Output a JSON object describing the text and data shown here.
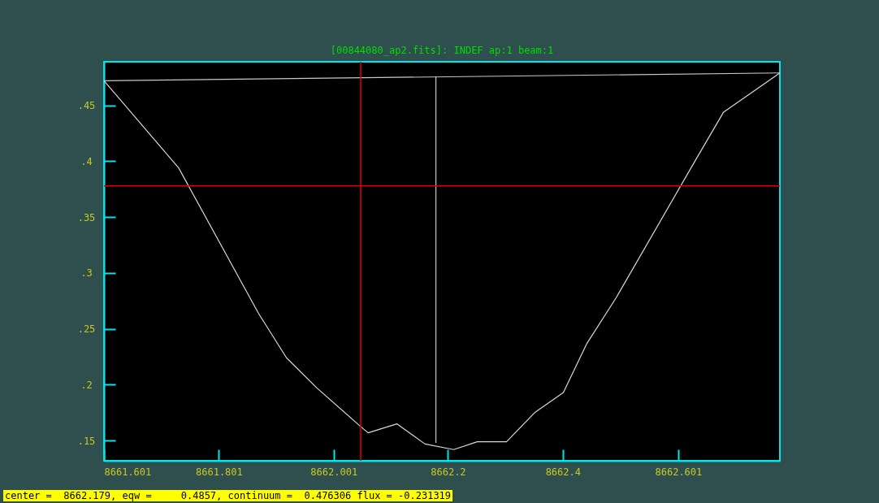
{
  "chart_data": {
    "type": "line",
    "title": "[00844080_ap2.fits]:  INDEF ap:1 beam:1",
    "series": [
      {
        "color": "#d8d8d8",
        "x": [
          8661.601,
          8661.731,
          8661.87,
          8661.919,
          8661.972,
          8662.047,
          8662.061,
          8662.111,
          8662.16,
          8662.21,
          8662.251,
          8662.276,
          8662.302,
          8662.351,
          8662.401,
          8662.442,
          8662.493,
          8662.63,
          8662.68,
          8662.778
        ],
        "values": [
          0.472,
          0.394,
          0.264,
          0.224,
          0.197,
          0.163,
          0.157,
          0.165,
          0.147,
          0.142,
          0.149,
          0.149,
          0.149,
          0.175,
          0.193,
          0.237,
          0.278,
          0.4,
          0.444,
          0.479
        ]
      },
      {
        "color": "#c8c8c8",
        "x": [
          8661.601,
          8662.778
        ],
        "values": [
          0.472,
          0.479
        ]
      },
      {
        "color": "#c8c8c8",
        "x": [
          8662.179,
          8662.179
        ],
        "values": [
          0.476,
          0.148
        ]
      }
    ],
    "xlim": [
      8661.601,
      8662.778
    ],
    "ylim": [
      0.132,
      0.489
    ],
    "xticks": [
      8661.601,
      8661.801,
      8662.001,
      8662.2,
      8662.4,
      8662.601
    ],
    "yticks": [
      {
        "value": 0.15,
        "label": ".15"
      },
      {
        "value": 0.2,
        "label": ".2"
      },
      {
        "value": 0.25,
        "label": ".25"
      },
      {
        "value": 0.3,
        "label": ".3"
      },
      {
        "value": 0.35,
        "label": ".35"
      },
      {
        "value": 0.4,
        "label": ".4"
      },
      {
        "value": 0.45,
        "label": ".45"
      }
    ],
    "ref_lines": [
      {
        "axis": "x",
        "value": 8662.048,
        "color": "#dd0000"
      },
      {
        "axis": "y",
        "value": 0.378,
        "color": "#dd0000"
      }
    ],
    "annotations": [
      "center =  8662.179, eqw =     0.4857, continuum =  0.476306 flux = -0.231319"
    ]
  }
}
